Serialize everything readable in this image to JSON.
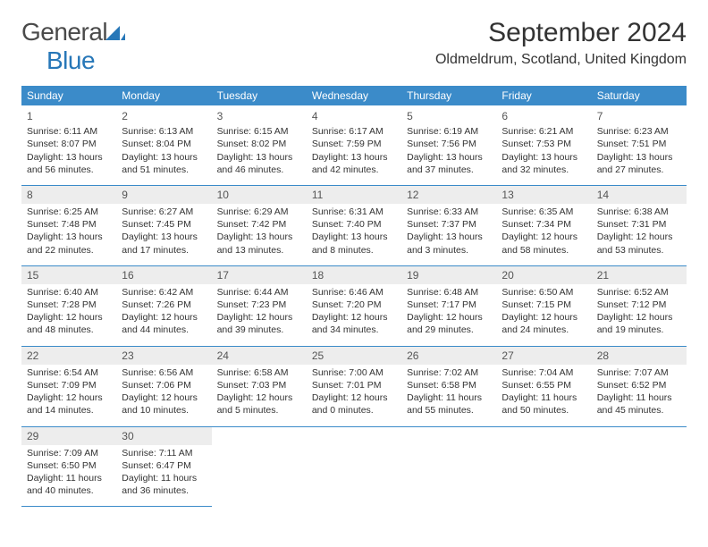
{
  "brand": {
    "general": "General",
    "blue": "Blue"
  },
  "title": "September 2024",
  "location": "Oldmeldrum, Scotland, United Kingdom",
  "colors": {
    "header_bg": "#3b8bc9",
    "header_text": "#ffffff",
    "rule": "#3b8bc9",
    "brand_blue": "#2777b8",
    "daynum_bg": "#ededed",
    "text": "#333333"
  },
  "weekdays": [
    "Sunday",
    "Monday",
    "Tuesday",
    "Wednesday",
    "Thursday",
    "Friday",
    "Saturday"
  ],
  "grid": {
    "rows": 5,
    "cols": 7
  },
  "days": [
    {
      "n": "1",
      "sr": "6:11 AM",
      "ss": "8:07 PM",
      "dl": "13 hours and 56 minutes."
    },
    {
      "n": "2",
      "sr": "6:13 AM",
      "ss": "8:04 PM",
      "dl": "13 hours and 51 minutes."
    },
    {
      "n": "3",
      "sr": "6:15 AM",
      "ss": "8:02 PM",
      "dl": "13 hours and 46 minutes."
    },
    {
      "n": "4",
      "sr": "6:17 AM",
      "ss": "7:59 PM",
      "dl": "13 hours and 42 minutes."
    },
    {
      "n": "5",
      "sr": "6:19 AM",
      "ss": "7:56 PM",
      "dl": "13 hours and 37 minutes."
    },
    {
      "n": "6",
      "sr": "6:21 AM",
      "ss": "7:53 PM",
      "dl": "13 hours and 32 minutes."
    },
    {
      "n": "7",
      "sr": "6:23 AM",
      "ss": "7:51 PM",
      "dl": "13 hours and 27 minutes."
    },
    {
      "n": "8",
      "sr": "6:25 AM",
      "ss": "7:48 PM",
      "dl": "13 hours and 22 minutes."
    },
    {
      "n": "9",
      "sr": "6:27 AM",
      "ss": "7:45 PM",
      "dl": "13 hours and 17 minutes."
    },
    {
      "n": "10",
      "sr": "6:29 AM",
      "ss": "7:42 PM",
      "dl": "13 hours and 13 minutes."
    },
    {
      "n": "11",
      "sr": "6:31 AM",
      "ss": "7:40 PM",
      "dl": "13 hours and 8 minutes."
    },
    {
      "n": "12",
      "sr": "6:33 AM",
      "ss": "7:37 PM",
      "dl": "13 hours and 3 minutes."
    },
    {
      "n": "13",
      "sr": "6:35 AM",
      "ss": "7:34 PM",
      "dl": "12 hours and 58 minutes."
    },
    {
      "n": "14",
      "sr": "6:38 AM",
      "ss": "7:31 PM",
      "dl": "12 hours and 53 minutes."
    },
    {
      "n": "15",
      "sr": "6:40 AM",
      "ss": "7:28 PM",
      "dl": "12 hours and 48 minutes."
    },
    {
      "n": "16",
      "sr": "6:42 AM",
      "ss": "7:26 PM",
      "dl": "12 hours and 44 minutes."
    },
    {
      "n": "17",
      "sr": "6:44 AM",
      "ss": "7:23 PM",
      "dl": "12 hours and 39 minutes."
    },
    {
      "n": "18",
      "sr": "6:46 AM",
      "ss": "7:20 PM",
      "dl": "12 hours and 34 minutes."
    },
    {
      "n": "19",
      "sr": "6:48 AM",
      "ss": "7:17 PM",
      "dl": "12 hours and 29 minutes."
    },
    {
      "n": "20",
      "sr": "6:50 AM",
      "ss": "7:15 PM",
      "dl": "12 hours and 24 minutes."
    },
    {
      "n": "21",
      "sr": "6:52 AM",
      "ss": "7:12 PM",
      "dl": "12 hours and 19 minutes."
    },
    {
      "n": "22",
      "sr": "6:54 AM",
      "ss": "7:09 PM",
      "dl": "12 hours and 14 minutes."
    },
    {
      "n": "23",
      "sr": "6:56 AM",
      "ss": "7:06 PM",
      "dl": "12 hours and 10 minutes."
    },
    {
      "n": "24",
      "sr": "6:58 AM",
      "ss": "7:03 PM",
      "dl": "12 hours and 5 minutes."
    },
    {
      "n": "25",
      "sr": "7:00 AM",
      "ss": "7:01 PM",
      "dl": "12 hours and 0 minutes."
    },
    {
      "n": "26",
      "sr": "7:02 AM",
      "ss": "6:58 PM",
      "dl": "11 hours and 55 minutes."
    },
    {
      "n": "27",
      "sr": "7:04 AM",
      "ss": "6:55 PM",
      "dl": "11 hours and 50 minutes."
    },
    {
      "n": "28",
      "sr": "7:07 AM",
      "ss": "6:52 PM",
      "dl": "11 hours and 45 minutes."
    },
    {
      "n": "29",
      "sr": "7:09 AM",
      "ss": "6:50 PM",
      "dl": "11 hours and 40 minutes."
    },
    {
      "n": "30",
      "sr": "7:11 AM",
      "ss": "6:47 PM",
      "dl": "11 hours and 36 minutes."
    }
  ],
  "labels": {
    "sunrise": "Sunrise:",
    "sunset": "Sunset:",
    "daylight": "Daylight:"
  },
  "typography": {
    "title_fontsize": 30,
    "location_fontsize": 16,
    "th_fontsize": 12,
    "cell_fontsize": 10.5
  }
}
